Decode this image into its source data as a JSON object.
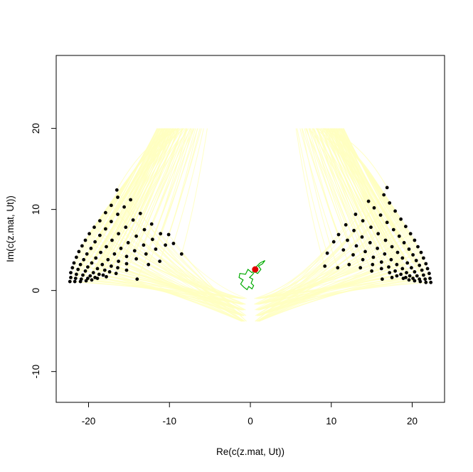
{
  "chart_data": {
    "type": "scatter",
    "xlabel": "Re(c(z.mat, Ut))",
    "ylabel": "Im(c(z.mat, Ut))",
    "xlim": [
      -24.0,
      24.0
    ],
    "ylim": [
      -13.8,
      29.0
    ],
    "xticks": [
      -20,
      -10,
      0,
      10,
      20
    ],
    "yticks": [
      -10,
      0,
      10,
      20
    ],
    "grid": false,
    "colors": {
      "points": "#000000",
      "trajectories": "#FFFFC0",
      "path": "#00AA00",
      "marker": "#E00000"
    },
    "series": [
      {
        "kind": "points",
        "values": [
          [
            -22.3,
            1.1
          ],
          [
            -22.2,
            1.6
          ],
          [
            -22.2,
            2.2
          ],
          [
            -22.0,
            2.8
          ],
          [
            -21.8,
            3.4
          ],
          [
            -21.5,
            4.1
          ],
          [
            -21.2,
            4.8
          ],
          [
            -20.8,
            5.5
          ],
          [
            -20.4,
            6.2
          ],
          [
            -19.9,
            7.0
          ],
          [
            -19.3,
            7.8
          ],
          [
            -18.6,
            8.6
          ],
          [
            -17.9,
            9.6
          ],
          [
            -17.2,
            10.5
          ],
          [
            -16.4,
            11.5
          ],
          [
            -21.7,
            1.1
          ],
          [
            -21.6,
            1.5
          ],
          [
            -21.5,
            2.0
          ],
          [
            -21.3,
            2.6
          ],
          [
            -21.0,
            3.2
          ],
          [
            -20.6,
            3.8
          ],
          [
            -20.2,
            4.5
          ],
          [
            -19.7,
            5.2
          ],
          [
            -19.2,
            6.0
          ],
          [
            -18.6,
            6.8
          ],
          [
            -17.9,
            7.6
          ],
          [
            -17.2,
            8.5
          ],
          [
            -16.4,
            9.4
          ],
          [
            -15.6,
            10.3
          ],
          [
            -14.8,
            11.2
          ],
          [
            -16.5,
            12.4
          ],
          [
            -21.0,
            1.1
          ],
          [
            -20.9,
            1.4
          ],
          [
            -20.7,
            1.9
          ],
          [
            -20.4,
            2.4
          ],
          [
            -20.1,
            2.9
          ],
          [
            -19.6,
            3.4
          ],
          [
            -19.1,
            4.0
          ],
          [
            -18.5,
            4.7
          ],
          [
            -17.8,
            5.4
          ],
          [
            -17.1,
            6.2
          ],
          [
            -16.3,
            7.0
          ],
          [
            -15.4,
            7.8
          ],
          [
            -14.5,
            8.7
          ],
          [
            -13.6,
            9.5
          ],
          [
            -20.3,
            1.2
          ],
          [
            -20.1,
            1.5
          ],
          [
            -19.8,
            1.8
          ],
          [
            -19.4,
            2.2
          ],
          [
            -18.9,
            2.7
          ],
          [
            -18.3,
            3.2
          ],
          [
            -17.6,
            3.8
          ],
          [
            -16.8,
            4.5
          ],
          [
            -16.0,
            5.2
          ],
          [
            -15.1,
            5.9
          ],
          [
            -14.1,
            6.7
          ],
          [
            -13.1,
            7.5
          ],
          [
            -12.2,
            8.2
          ],
          [
            -19.6,
            1.3
          ],
          [
            -19.2,
            1.6
          ],
          [
            -18.7,
            2.0
          ],
          [
            -18.0,
            2.5
          ],
          [
            -17.2,
            3.0
          ],
          [
            -16.3,
            3.6
          ],
          [
            -15.3,
            4.2
          ],
          [
            -14.3,
            4.9
          ],
          [
            -13.2,
            5.6
          ],
          [
            -12.1,
            6.3
          ],
          [
            -11.1,
            7.0
          ],
          [
            -10.1,
            6.9
          ],
          [
            -18.9,
            1.5
          ],
          [
            -18.2,
            1.9
          ],
          [
            -17.4,
            2.3
          ],
          [
            -16.4,
            2.8
          ],
          [
            -15.3,
            3.3
          ],
          [
            -14.1,
            3.9
          ],
          [
            -12.9,
            4.5
          ],
          [
            -11.7,
            5.1
          ],
          [
            -10.5,
            5.6
          ],
          [
            -9.5,
            5.8
          ],
          [
            -8.5,
            4.5
          ],
          [
            -17.8,
            1.7
          ],
          [
            -16.6,
            2.1
          ],
          [
            -15.3,
            2.5
          ],
          [
            -14.0,
            1.4
          ],
          [
            -12.6,
            3.2
          ],
          [
            -11.2,
            3.6
          ],
          [
            22.3,
            1.0
          ],
          [
            22.2,
            1.5
          ],
          [
            22.1,
            2.1
          ],
          [
            21.9,
            2.7
          ],
          [
            21.7,
            3.3
          ],
          [
            21.4,
            4.0
          ],
          [
            21.1,
            4.7
          ],
          [
            20.7,
            5.4
          ],
          [
            20.3,
            6.2
          ],
          [
            19.8,
            7.0
          ],
          [
            19.2,
            7.9
          ],
          [
            18.6,
            8.8
          ],
          [
            17.9,
            9.8
          ],
          [
            17.2,
            10.8
          ],
          [
            16.5,
            11.8
          ],
          [
            21.7,
            1.0
          ],
          [
            21.6,
            1.4
          ],
          [
            21.4,
            1.9
          ],
          [
            21.2,
            2.5
          ],
          [
            20.9,
            3.1
          ],
          [
            20.5,
            3.7
          ],
          [
            20.1,
            4.4
          ],
          [
            19.6,
            5.1
          ],
          [
            19.0,
            5.9
          ],
          [
            18.4,
            6.7
          ],
          [
            17.7,
            7.5
          ],
          [
            16.9,
            8.4
          ],
          [
            16.1,
            9.3
          ],
          [
            15.3,
            10.2
          ],
          [
            14.6,
            11.0
          ],
          [
            16.9,
            12.7
          ],
          [
            21.0,
            1.1
          ],
          [
            20.9,
            1.4
          ],
          [
            20.6,
            1.8
          ],
          [
            20.3,
            2.3
          ],
          [
            19.9,
            2.8
          ],
          [
            19.4,
            3.4
          ],
          [
            18.8,
            4.0
          ],
          [
            18.2,
            4.7
          ],
          [
            17.5,
            5.4
          ],
          [
            16.7,
            6.2
          ],
          [
            15.8,
            7.0
          ],
          [
            14.9,
            7.8
          ],
          [
            13.9,
            8.6
          ],
          [
            13.0,
            9.4
          ],
          [
            20.3,
            1.2
          ],
          [
            20.1,
            1.5
          ],
          [
            19.7,
            1.8
          ],
          [
            19.3,
            2.2
          ],
          [
            18.8,
            2.7
          ],
          [
            18.1,
            3.2
          ],
          [
            17.4,
            3.8
          ],
          [
            16.6,
            4.5
          ],
          [
            15.7,
            5.2
          ],
          [
            14.8,
            5.9
          ],
          [
            13.8,
            6.6
          ],
          [
            12.8,
            7.4
          ],
          [
            11.8,
            8.1
          ],
          [
            19.6,
            1.3
          ],
          [
            19.2,
            1.6
          ],
          [
            18.6,
            2.0
          ],
          [
            17.9,
            2.4
          ],
          [
            17.1,
            2.9
          ],
          [
            16.2,
            3.5
          ],
          [
            15.2,
            4.1
          ],
          [
            14.2,
            4.8
          ],
          [
            13.1,
            5.5
          ],
          [
            12.0,
            6.2
          ],
          [
            10.9,
            6.9
          ],
          [
            10.3,
            6.0
          ],
          [
            18.9,
            1.5
          ],
          [
            18.1,
            1.8
          ],
          [
            17.2,
            2.2
          ],
          [
            16.2,
            2.7
          ],
          [
            15.1,
            3.2
          ],
          [
            13.9,
            3.8
          ],
          [
            12.7,
            4.4
          ],
          [
            11.5,
            5.0
          ],
          [
            9.5,
            4.6
          ],
          [
            9.2,
            3.0
          ],
          [
            17.5,
            1.6
          ],
          [
            16.3,
            1.4
          ],
          [
            15.0,
            2.4
          ],
          [
            13.6,
            2.8
          ],
          [
            12.2,
            3.2
          ],
          [
            10.8,
            2.8
          ]
        ]
      },
      {
        "kind": "path",
        "values": [
          [
            0.6,
            2.6
          ],
          [
            0.2,
            2.2
          ],
          [
            -0.3,
            2.6
          ],
          [
            -0.6,
            2.0
          ],
          [
            -1.3,
            2.1
          ],
          [
            -1.4,
            1.6
          ],
          [
            -0.9,
            1.3
          ],
          [
            -1.2,
            0.8
          ],
          [
            -0.8,
            0.4
          ],
          [
            -0.4,
            0.1
          ],
          [
            -0.2,
            0.5
          ],
          [
            0.2,
            0.2
          ],
          [
            0.4,
            0.6
          ],
          [
            0.1,
            0.9
          ],
          [
            0.3,
            1.4
          ],
          [
            -0.1,
            1.6
          ],
          [
            0.3,
            2.0
          ],
          [
            0.5,
            2.3
          ],
          [
            0.9,
            2.1
          ],
          [
            1.3,
            2.6
          ],
          [
            1.0,
            3.0
          ],
          [
            1.5,
            3.3
          ],
          [
            1.8,
            3.7
          ],
          [
            1.2,
            3.4
          ],
          [
            0.8,
            3.0
          ],
          [
            0.5,
            2.7
          ]
        ]
      },
      {
        "kind": "marker",
        "values": [
          [
            0.6,
            2.6
          ]
        ]
      }
    ]
  }
}
